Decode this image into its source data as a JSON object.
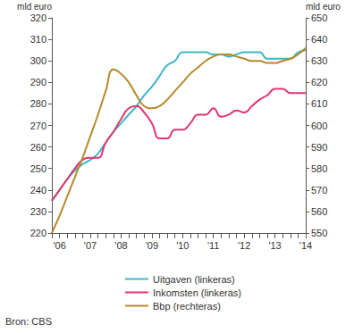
{
  "chart_data": {
    "type": "line",
    "ylabel": "mld euro",
    "y2label": "mld euro",
    "categories": [
      null,
      "'06",
      null,
      null,
      null,
      "'07",
      null,
      null,
      null,
      "'08",
      null,
      null,
      null,
      "'09",
      null,
      null,
      null,
      "'10",
      null,
      null,
      null,
      "'11",
      null,
      null,
      null,
      "'12",
      null,
      null,
      null,
      "'13",
      null,
      null,
      null,
      "'14"
    ],
    "series": [
      {
        "name": "Uitgaven (linkeras)",
        "color": "#3cb8c6",
        "values": [
          235,
          240,
          245,
          249,
          252,
          254,
          257,
          262,
          267,
          271,
          275,
          279,
          284,
          288,
          293,
          298,
          300,
          304,
          304,
          304,
          304,
          303,
          303,
          302,
          303,
          304,
          304,
          304,
          301,
          301,
          301,
          301,
          304,
          305
        ]
      },
      {
        "name": "Inkomsten (linkeras)",
        "color": "#e2356c",
        "values": [
          235,
          240,
          245,
          250,
          254,
          255,
          255,
          262,
          267,
          273,
          278,
          279,
          276,
          271,
          264,
          264,
          268,
          268,
          271,
          275,
          275,
          278,
          274,
          275,
          277,
          276,
          279,
          282,
          284,
          287,
          287,
          285,
          285,
          285
        ]
      },
      {
        "name": "Bbp (rechteras)",
        "color": "#b48a2c",
        "axis": "y2",
        "values": [
          550,
          558,
          567,
          576,
          585,
          595,
          605,
          616,
          626,
          624,
          620,
          614,
          609,
          608,
          609,
          612,
          616,
          620,
          624,
          627,
          630,
          632,
          633,
          633,
          632,
          631,
          630,
          630,
          629,
          629,
          630,
          631,
          633,
          636
        ]
      }
    ],
    "ylim": [
      220,
      320
    ],
    "yticks": [
      220,
      230,
      240,
      250,
      260,
      270,
      280,
      290,
      300,
      310,
      320
    ],
    "y2lim": [
      550,
      650
    ],
    "y2ticks": [
      550,
      560,
      570,
      580,
      590,
      600,
      610,
      620,
      630,
      640,
      650
    ],
    "grid": false,
    "legend": "bottom",
    "annotations": [
      "Bron: CBS"
    ]
  }
}
